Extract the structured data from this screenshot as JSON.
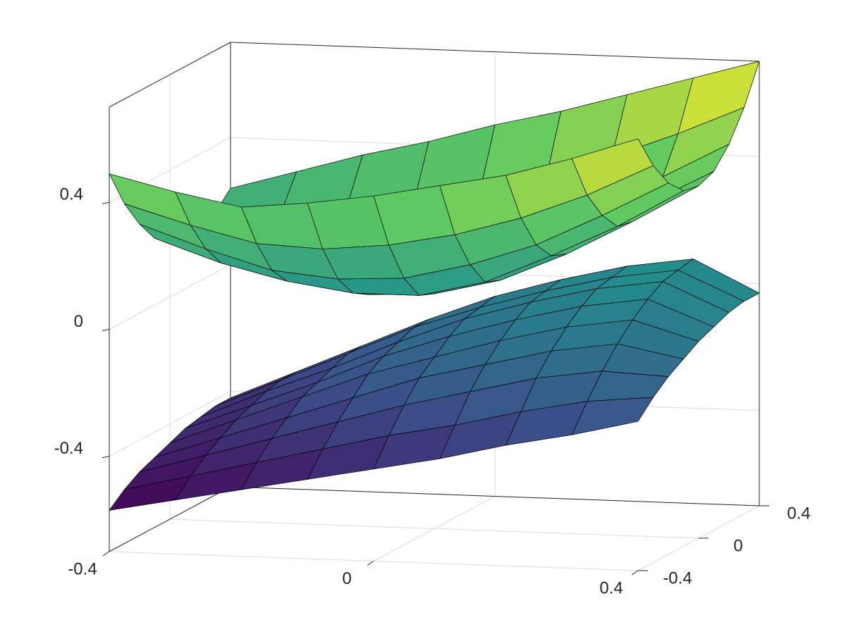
{
  "chart_data": {
    "type": "surface",
    "x": [
      -0.4,
      -0.3,
      -0.2,
      -0.1,
      0,
      0.1,
      0.2,
      0.3,
      0.4
    ],
    "y": [
      -0.4,
      -0.3,
      -0.2,
      -0.1,
      0,
      0.1,
      0.2,
      0.3,
      0.4
    ],
    "surfaces": [
      {
        "z": [
          [
            0.49,
            0.44,
            0.4,
            0.42,
            0.45,
            0.49,
            0.53,
            0.59,
            0.66
          ],
          [
            0.37,
            0.31,
            0.26,
            0.25,
            0.27,
            0.31,
            0.37,
            0.45,
            0.55
          ],
          [
            0.28,
            0.21,
            0.15,
            0.13,
            0.14,
            0.19,
            0.26,
            0.36,
            0.47
          ],
          [
            0.21,
            0.14,
            0.09,
            0.06,
            0.06,
            0.11,
            0.2,
            0.3,
            0.42
          ],
          [
            0.17,
            0.11,
            0.06,
            0.03,
            0.04,
            0.09,
            0.18,
            0.29,
            0.41
          ],
          [
            0.15,
            0.11,
            0.08,
            0.05,
            0.07,
            0.12,
            0.21,
            0.32,
            0.43
          ],
          [
            0.16,
            0.14,
            0.13,
            0.12,
            0.15,
            0.2,
            0.29,
            0.38,
            0.49
          ],
          [
            0.19,
            0.2,
            0.23,
            0.24,
            0.28,
            0.33,
            0.41,
            0.49,
            0.58
          ],
          [
            0.24,
            0.3,
            0.36,
            0.41,
            0.47,
            0.52,
            0.58,
            0.64,
            0.7
          ]
        ]
      },
      {
        "z": [
          [
            -0.57,
            -0.53,
            -0.49,
            -0.45,
            -0.41,
            -0.37,
            -0.32,
            -0.28,
            -0.23
          ],
          [
            -0.53,
            -0.48,
            -0.43,
            -0.38,
            -0.33,
            -0.29,
            -0.24,
            -0.2,
            -0.18
          ],
          [
            -0.5,
            -0.44,
            -0.38,
            -0.32,
            -0.26,
            -0.21,
            -0.16,
            -0.13,
            -0.14
          ],
          [
            -0.48,
            -0.41,
            -0.34,
            -0.27,
            -0.2,
            -0.15,
            -0.1,
            -0.07,
            -0.11
          ],
          [
            -0.46,
            -0.38,
            -0.3,
            -0.22,
            -0.16,
            -0.1,
            -0.05,
            -0.02,
            -0.08
          ],
          [
            -0.44,
            -0.36,
            -0.28,
            -0.19,
            -0.12,
            -0.06,
            -0.01,
            0.02,
            -0.06
          ],
          [
            -0.43,
            -0.34,
            -0.26,
            -0.17,
            -0.09,
            -0.03,
            0.02,
            0.05,
            -0.04
          ],
          [
            -0.42,
            -0.33,
            -0.24,
            -0.15,
            -0.08,
            -0.02,
            0.03,
            0.06,
            -0.03
          ],
          [
            -0.42,
            -0.33,
            -0.24,
            -0.15,
            -0.07,
            -0.01,
            0.04,
            0.07,
            -0.03
          ]
        ]
      }
    ],
    "xlim": [
      -0.4,
      0.4
    ],
    "ylim": [
      -0.4,
      0.4
    ],
    "zlim": [
      -0.7,
      0.7
    ],
    "xticks": [
      -0.4,
      0,
      0.4
    ],
    "yticks": [
      -0.4,
      0,
      0.4
    ],
    "zticks": [
      -0.4,
      0,
      0.4
    ],
    "colormap": [
      "#440154",
      "#3b528b",
      "#21918c",
      "#5ec962",
      "#fde725"
    ],
    "edge_color": "#000000",
    "grid": true
  }
}
